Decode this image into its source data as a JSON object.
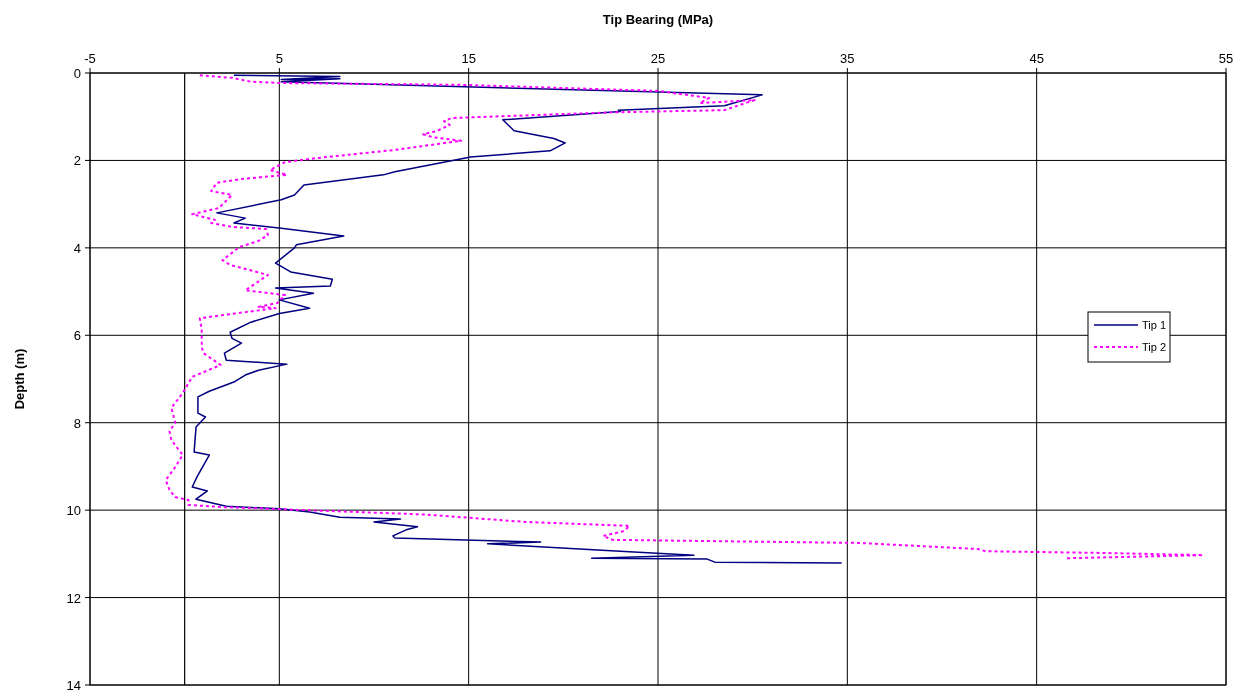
{
  "chart_data": {
    "type": "line",
    "xlabel": "Tip Bearing (MPa)",
    "ylabel": "Depth (m)",
    "xlim": [
      -5,
      55
    ],
    "xticks": [
      -5,
      5,
      15,
      25,
      35,
      45,
      55
    ],
    "ylim": [
      14,
      0
    ],
    "yticks": [
      0,
      2,
      4,
      6,
      8,
      10,
      12,
      14
    ],
    "grid": true,
    "legend": "right",
    "ref_lines": [
      {
        "axis": "x",
        "value": 0,
        "color": "#000000"
      }
    ],
    "series": [
      {
        "name": "Tip 1",
        "color": "#000080",
        "line_style": "solid",
        "x": [
          2.6,
          8.2,
          5.1,
          8.2,
          5.1,
          30.5,
          28.5,
          22.9,
          23,
          16.8,
          17.4,
          19.5,
          20.1,
          19.3,
          15.1,
          11.1,
          10.5,
          6.3,
          5.8,
          5.1,
          1.7,
          3.2,
          2.6,
          5.1,
          8.4,
          5.9,
          5.8,
          4.8,
          5.6,
          7.8,
          7.7,
          4.8,
          6.8,
          5,
          6.6,
          5,
          3.5,
          2.4,
          2.5,
          3,
          2.1,
          2.2,
          5.4,
          3.9,
          3.2,
          2.6,
          1.3,
          0.7,
          0.7,
          1.1,
          0.6,
          0.5,
          1.3,
          0.65,
          0.4,
          1.2,
          0.6,
          2.2,
          5,
          6.6,
          8.2,
          11.4,
          10,
          12.3,
          11.7,
          11,
          11.1,
          18.8,
          16,
          23,
          26.9,
          21.5,
          27.6,
          28,
          34.7
        ],
        "values": [
          0.05,
          0.08,
          0.15,
          0.13,
          0.2,
          0.5,
          0.75,
          0.85,
          0.88,
          1.07,
          1.32,
          1.5,
          1.6,
          1.78,
          1.92,
          2.26,
          2.33,
          2.56,
          2.79,
          2.9,
          3.2,
          3.32,
          3.43,
          3.55,
          3.73,
          3.93,
          4.0,
          4.35,
          4.55,
          4.72,
          4.87,
          4.92,
          5.04,
          5.19,
          5.38,
          5.5,
          5.7,
          5.93,
          6.07,
          6.18,
          6.41,
          6.57,
          6.66,
          6.8,
          6.91,
          7.07,
          7.28,
          7.41,
          7.78,
          7.87,
          8.1,
          8.67,
          8.74,
          9.24,
          9.47,
          9.56,
          9.75,
          9.91,
          9.97,
          10.04,
          10.16,
          10.2,
          10.27,
          10.38,
          10.45,
          10.59,
          10.64,
          10.73,
          10.77,
          10.94,
          11.03,
          11.1,
          11.12,
          11.19,
          11.21
        ]
      },
      {
        "name": "Tip 2",
        "color": "#ff00ff",
        "line_style": "dotted",
        "x": [
          0.8,
          2.5,
          3.5,
          5.1,
          14.5,
          25,
          27.7,
          27.2,
          30.1,
          28.5,
          22.6,
          14.1,
          13.7,
          14,
          13.3,
          12.6,
          13.1,
          14.6,
          11.1,
          6.9,
          5.3,
          4.5,
          5.4,
          3.1,
          1.7,
          1.4,
          2.5,
          1.8,
          0.4,
          1.6,
          1.4,
          2.5,
          4.3,
          4.4,
          3.9,
          2.9,
          2,
          2.4,
          4.4,
          4,
          3.2,
          5.3,
          4.9,
          3.9,
          4.8,
          3.2,
          0.8,
          0.9,
          0.9,
          1,
          1.9,
          0.4,
          -0.1,
          -0.7,
          -0.5,
          -0.8,
          -0.7,
          -0.1,
          -0.6,
          -1,
          -0.8,
          -0.5,
          0.2,
          0.2,
          2,
          12.7,
          18,
          23.5,
          23.2,
          22.1,
          22.6,
          35.6,
          41.9,
          42.3,
          48.6,
          53.8,
          46.6
        ],
        "values": [
          0.05,
          0.11,
          0.2,
          0.23,
          0.27,
          0.41,
          0.57,
          0.69,
          0.62,
          0.85,
          0.9,
          1.03,
          1.1,
          1.19,
          1.33,
          1.4,
          1.47,
          1.55,
          1.76,
          1.95,
          2.04,
          2.22,
          2.33,
          2.42,
          2.51,
          2.7,
          2.79,
          3.09,
          3.23,
          3.36,
          3.43,
          3.52,
          3.57,
          3.71,
          3.84,
          3.98,
          4.28,
          4.39,
          4.62,
          4.74,
          4.97,
          5.08,
          5.26,
          5.35,
          5.38,
          5.47,
          5.61,
          5.88,
          6.27,
          6.41,
          6.68,
          6.95,
          7.32,
          7.66,
          8.0,
          8.2,
          8.4,
          8.74,
          9.08,
          9.31,
          9.54,
          9.7,
          9.77,
          9.88,
          9.93,
          10.1,
          10.27,
          10.36,
          10.48,
          10.59,
          10.68,
          10.75,
          10.89,
          10.94,
          10.98,
          11.03,
          11.1
        ]
      }
    ]
  }
}
